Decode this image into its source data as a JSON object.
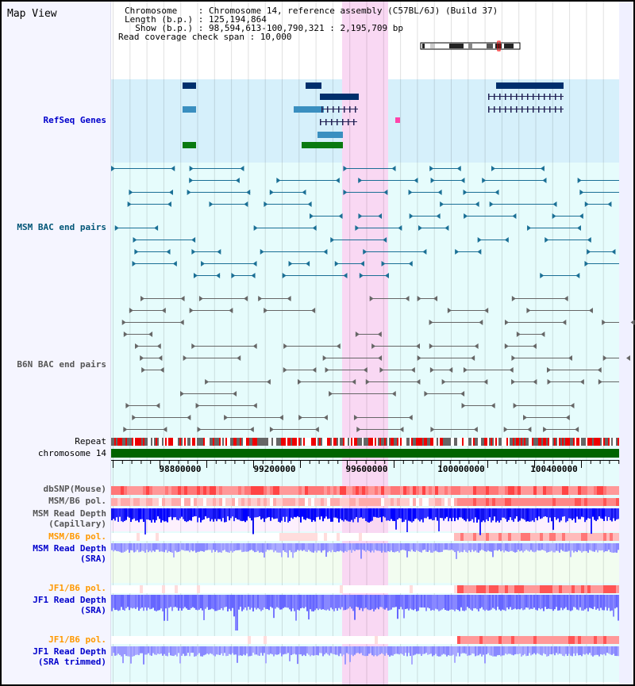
{
  "title": "Map View",
  "info": {
    "chromosome_label": "Chromosome    : ",
    "chromosome": "Chromosome 14, reference assembly (C57BL/6J) (Build 37)",
    "length_label": "Length (b.p.) : ",
    "length": "125,194,864",
    "show_label": "  Show (b.p.) : ",
    "show": "98,594,613-100,790,321 : 2,195,709 bp",
    "span_label": "Read coverage check span : ",
    "span": "10,000"
  },
  "tracks": {
    "refseq": "RefSeq Genes",
    "msm_bac": "MSM BAC end pairs",
    "b6n_bac": "B6N BAC end pairs",
    "repeat": "Repeat",
    "chromosome": "chromosome 14",
    "dbsnp": "dbSNP(Mouse)",
    "msm_b6_pol": "MSM/B6 pol.",
    "msm_depth_cap_1": "MSM Read Depth",
    "msm_depth_cap_2": "(Capillary)",
    "msm_b6_pol2": "MSM/B6 pol.",
    "msm_depth_sra_1": "MSM Read Depth",
    "msm_depth_sra_2": "(SRA)",
    "jf1_b6_pol": "JF1/B6 pol.",
    "jf1_depth_1": "JF1 Read Depth",
    "jf1_depth_2": "(SRA)",
    "jf1_b6_pol2": "JF1/B6 pol.",
    "jf1_trim_1": "JF1 Read Depth",
    "jf1_trim_2": "(SRA trimmed)"
  },
  "axis": {
    "ticks": [
      "98800000",
      "99200000",
      "99600000",
      "100000000",
      "100400000"
    ]
  },
  "colors": {
    "highlight": "#f9d8f3",
    "refseq_bg": "#d6f0fb",
    "bac_bg": "#e6fcfc",
    "gene": "#002f6c",
    "chrom": "#006400"
  }
}
